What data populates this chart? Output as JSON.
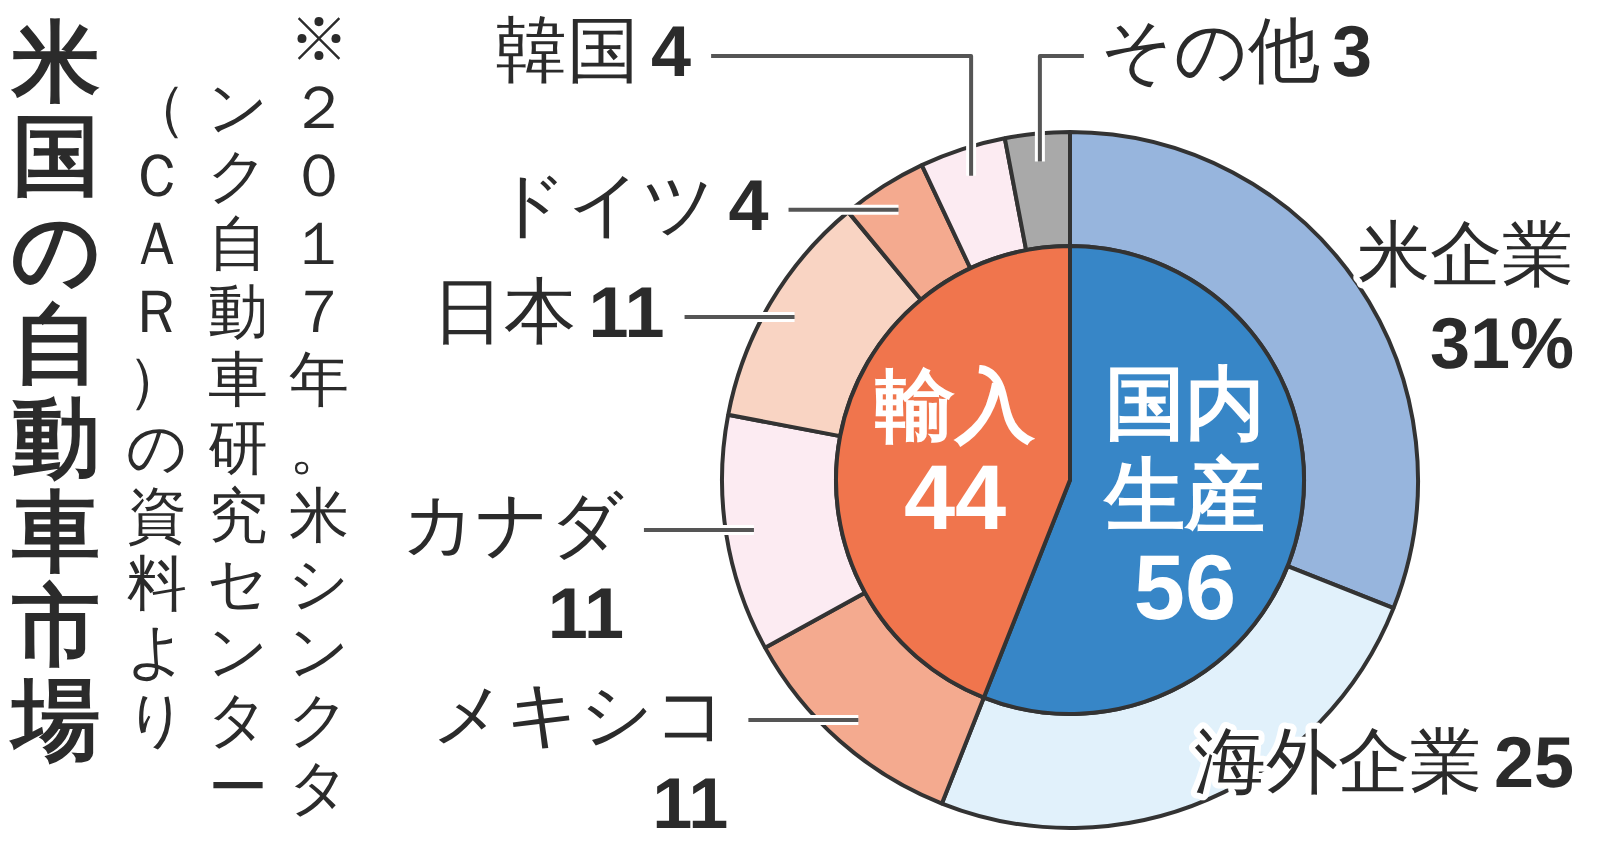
{
  "chart_data": [
    {
      "type": "pie",
      "title": "米国の自動車市場",
      "annotations": [
        "※２０１７年。米シンクタンク自動車研究センター（ＣＡＲ）の資料より"
      ],
      "categories": [
        "国内生産",
        "輸入"
      ],
      "values": [
        56,
        44
      ],
      "colors": [
        "#3786c7",
        "#f0754d"
      ],
      "data_labels": true
    },
    {
      "type": "donut",
      "categories": [
        "米企業",
        "海外企業",
        "メキシコ",
        "カナダ",
        "日本",
        "ドイツ",
        "韓国",
        "その他"
      ],
      "values": [
        31,
        25,
        11,
        11,
        11,
        4,
        4,
        3
      ],
      "colors": [
        "#97b5dd",
        "#e1f1fb",
        "#f4aa8f",
        "#fcebf2",
        "#f9d4c3",
        "#f4aa8f",
        "#fcebf2",
        "#a9a9a9"
      ],
      "value_labels": [
        "31%",
        "25",
        "11",
        "11",
        "11",
        "4",
        "4",
        "3"
      ]
    }
  ]
}
